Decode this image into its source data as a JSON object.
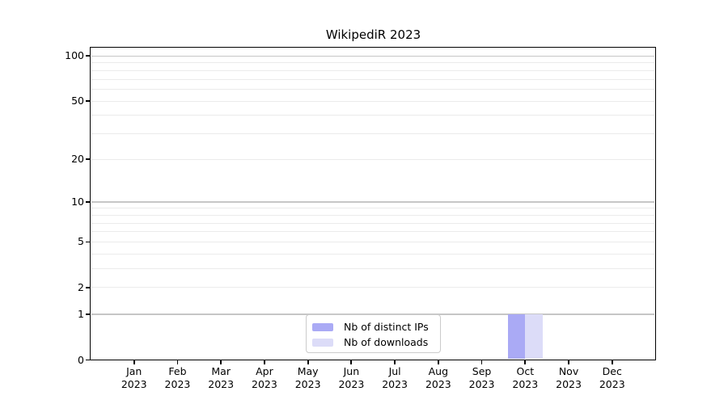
{
  "chart_data": {
    "type": "bar",
    "title": "WikipediR 2023",
    "x_tick_labels": [
      {
        "month": "Jan",
        "year": "2023"
      },
      {
        "month": "Feb",
        "year": "2023"
      },
      {
        "month": "Mar",
        "year": "2023"
      },
      {
        "month": "Apr",
        "year": "2023"
      },
      {
        "month": "May",
        "year": "2023"
      },
      {
        "month": "Jun",
        "year": "2023"
      },
      {
        "month": "Jul",
        "year": "2023"
      },
      {
        "month": "Aug",
        "year": "2023"
      },
      {
        "month": "Sep",
        "year": "2023"
      },
      {
        "month": "Oct",
        "year": "2023"
      },
      {
        "month": "Nov",
        "year": "2023"
      },
      {
        "month": "Dec",
        "year": "2023"
      }
    ],
    "series": [
      {
        "name": "Nb of distinct IPs",
        "color": "#aaaaf5",
        "values": [
          0,
          0,
          0,
          0,
          0,
          0,
          0,
          0,
          0,
          1,
          0,
          0
        ]
      },
      {
        "name": "Nb of downloads",
        "color": "#dcdcf8",
        "values": [
          0,
          0,
          0,
          0,
          0,
          0,
          0,
          0,
          0,
          1,
          0,
          0
        ]
      }
    ],
    "yscale": "log1p",
    "ylim": [
      0,
      113
    ],
    "y_tick_values": [
      0,
      1,
      2,
      5,
      10,
      20,
      50,
      100
    ],
    "y_major_gridlines": [
      1,
      10,
      100
    ],
    "y_minor_gridlines": [
      2,
      3,
      4,
      5,
      6,
      7,
      8,
      9,
      20,
      30,
      40,
      50,
      60,
      70,
      80,
      90
    ],
    "xlabel": "",
    "ylabel": "",
    "grid": "horizontal major+minor",
    "legend_position": "lower center"
  },
  "colors": {
    "background": "#ffffff",
    "axis": "#000000",
    "major_grid": "#c6c6c6",
    "minor_grid": "#ebebeb",
    "legend_border": "#cbcbcb",
    "bar_distinct_ips": "#aaaaf5",
    "bar_downloads": "#dcdcf8"
  }
}
